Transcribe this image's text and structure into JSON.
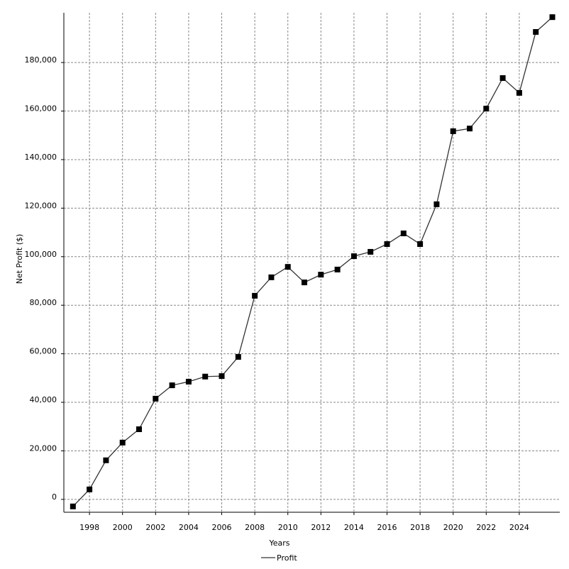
{
  "chart_data": {
    "type": "line",
    "x_label": "Years",
    "y_label": "Net Profit ($)",
    "x": [
      1997,
      1998,
      1999,
      2000,
      2001,
      2002,
      2003,
      2004,
      2005,
      2006,
      2007,
      2008,
      2009,
      2010,
      2011,
      2012,
      2013,
      2014,
      2015,
      2016,
      2017,
      2018,
      2019,
      2020,
      2021,
      2022,
      2023,
      2024,
      2025,
      2026
    ],
    "series": [
      {
        "name": "Profit",
        "color": "#333333",
        "values": [
          -2900,
          4100,
          16100,
          23400,
          28900,
          41500,
          47000,
          48500,
          50600,
          50800,
          58700,
          83900,
          91500,
          95800,
          89400,
          92600,
          94700,
          100200,
          102000,
          105200,
          109600,
          105200,
          121600,
          151700,
          152800,
          161000,
          173600,
          167500,
          192600,
          198700
        ]
      }
    ],
    "xlim": [
      1996.45,
      2026.45
    ],
    "xticks": [
      1998,
      2000,
      2002,
      2004,
      2006,
      2008,
      2010,
      2012,
      2014,
      2016,
      2018,
      2020,
      2022,
      2024
    ],
    "ylim": [
      -5300,
      200500
    ],
    "yticks": [
      0,
      {
        "value": 20000,
        "label": "20,000"
      },
      {
        "value": 40000,
        "label": "40,000"
      },
      {
        "value": 60000,
        "label": "60,000"
      },
      {
        "value": 80000,
        "label": "80,000"
      },
      {
        "value": 100000,
        "label": "100,000"
      },
      {
        "value": 120000,
        "label": "120,000"
      },
      {
        "value": 140000,
        "label": "140,000"
      },
      {
        "value": 160000,
        "label": "160,000"
      },
      {
        "value": 180000,
        "label": "180,000"
      }
    ],
    "grid": true,
    "legend": "bottom"
  }
}
